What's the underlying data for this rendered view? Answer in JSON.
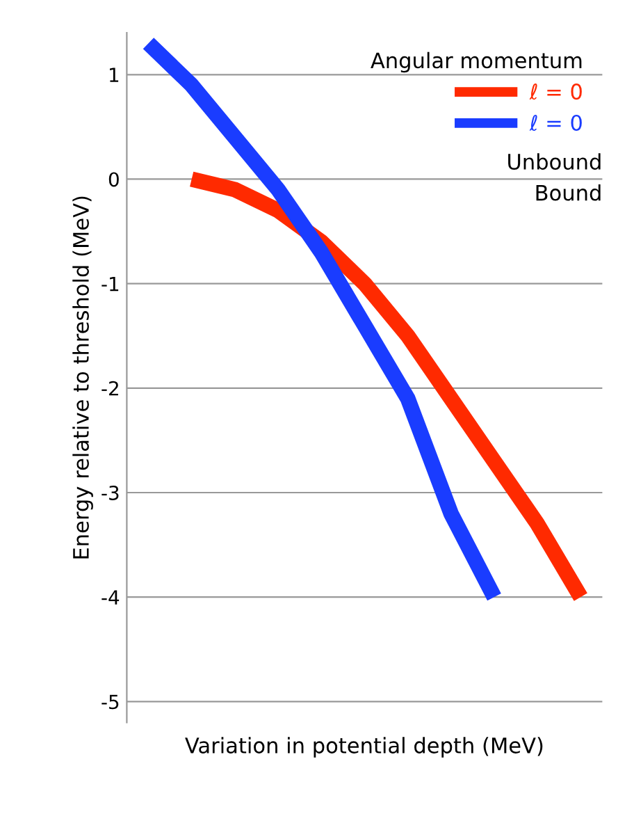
{
  "chart_data": {
    "type": "line",
    "xlabel": "Variation in potential depth (MeV)",
    "ylabel": "Energy relative to threshold (MeV)",
    "legend_title": "Angular momentum",
    "legend": "top right",
    "grid": "y",
    "categories": [
      null,
      null,
      null,
      null,
      null,
      null,
      null,
      null,
      null,
      null,
      null
    ],
    "series": [
      {
        "name": "ℓ = 0",
        "color": "#ff2a00",
        "values": [
          null,
          0,
          -0.1,
          -0.3,
          -0.6,
          -1.0,
          -1.5,
          -2.1,
          -2.7,
          -3.3,
          -4.0
        ]
      },
      {
        "name": "ℓ = 0",
        "color": "#1a3cff",
        "values": [
          1.3,
          0.9,
          0.4,
          -0.1,
          -0.7,
          -1.4,
          -2.1,
          -3.2,
          -4.0,
          null,
          null
        ]
      }
    ],
    "ylim": [
      -5.2,
      1.4
    ],
    "yticks": [
      -5,
      -4,
      -3,
      -2,
      -1,
      0,
      1
    ],
    "annotations": [
      "Unbound",
      "Bound"
    ]
  }
}
